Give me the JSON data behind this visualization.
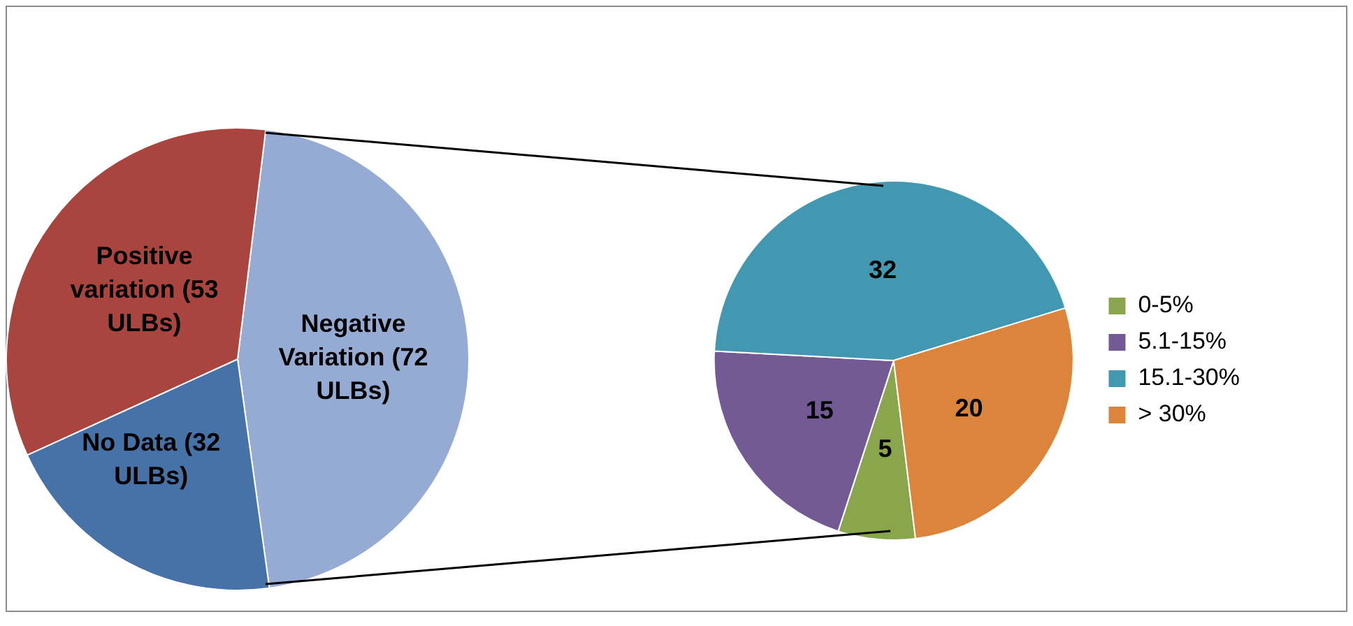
{
  "chart_data": [
    {
      "type": "pie",
      "categories": [
        "Negative Variation (72 ULBs)",
        "No Data (32 ULBs)",
        "Positive variation (53 ULBs)"
      ],
      "values": [
        72,
        32,
        53
      ],
      "colors": [
        "#95abd4",
        "#4672a8",
        "#a9443f"
      ],
      "legend": false
    },
    {
      "type": "pie",
      "categories": [
        "0-5%",
        "5.1-15%",
        "15.1-30%",
        "> 30%"
      ],
      "values": [
        5,
        15,
        32,
        20
      ],
      "colors": [
        "#8aa64c",
        "#735a94",
        "#4298b0",
        "#dc843c"
      ],
      "legend": "right",
      "data_labels": true
    }
  ]
}
